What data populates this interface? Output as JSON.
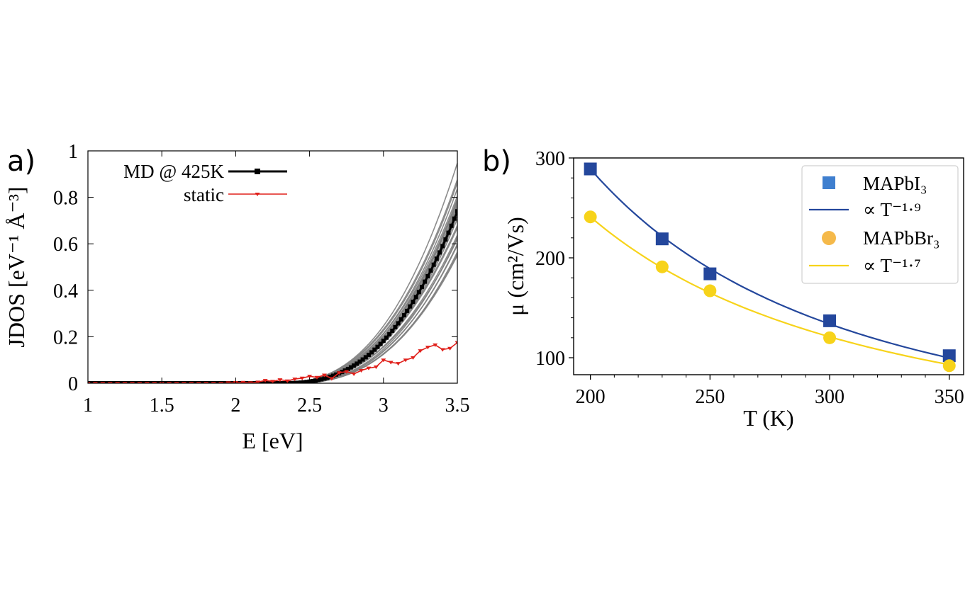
{
  "panels": {
    "a_label": "a)",
    "b_label": "b)"
  },
  "chart_data": [
    {
      "type": "line",
      "panel": "a)",
      "xlabel": "E [eV]",
      "ylabel": "JDOS [eV⁻¹ Å⁻³]",
      "xlim": [
        1,
        3.5
      ],
      "ylim": [
        0,
        1
      ],
      "xticks": [
        "1",
        "1.5",
        "2",
        "2.5",
        "3",
        "3.5"
      ],
      "yticks": [
        "0",
        "0.2",
        "0.4",
        "0.6",
        "0.8",
        "1"
      ],
      "grid": false,
      "legend_position": "top-left",
      "series": [
        {
          "name": "MD @ 425K",
          "color": "#000000",
          "marker": "square",
          "band_color": "#808080",
          "band_samples": 30,
          "model": {
            "onset": 2.3,
            "scale": 0.74,
            "power": 2.6
          },
          "x": [
            1.0,
            1.5,
            2.0,
            2.2,
            2.3,
            2.4,
            2.5,
            2.6,
            2.7,
            2.8,
            2.9,
            3.0,
            3.1,
            3.2,
            3.3,
            3.4,
            3.5
          ],
          "y": [
            0.0,
            0.0,
            0.0,
            0.0,
            0.0,
            0.002,
            0.01,
            0.03,
            0.06,
            0.1,
            0.16,
            0.23,
            0.31,
            0.4,
            0.51,
            0.62,
            0.74
          ]
        },
        {
          "name": "static",
          "color": "#e0201b",
          "marker": "triangle-down",
          "x": [
            1.0,
            1.05,
            1.1,
            1.15,
            1.2,
            1.25,
            1.3,
            1.35,
            1.4,
            1.45,
            1.5,
            1.55,
            1.6,
            1.65,
            1.7,
            1.75,
            1.8,
            1.85,
            1.9,
            1.95,
            2.0,
            2.05,
            2.1,
            2.15,
            2.2,
            2.25,
            2.3,
            2.35,
            2.4,
            2.45,
            2.5,
            2.55,
            2.6,
            2.65,
            2.7,
            2.75,
            2.8,
            2.85,
            2.9,
            2.95,
            3.0,
            3.05,
            3.1,
            3.15,
            3.2,
            3.25,
            3.3,
            3.35,
            3.4,
            3.45,
            3.5
          ],
          "y": [
            0.0,
            0.0,
            0.0,
            0.0,
            0.0,
            0.0,
            0.0,
            0.0,
            0.0,
            0.0,
            0.0,
            0.0,
            0.0,
            0.0,
            0.0,
            0.0,
            0.0,
            0.0,
            0.0,
            0.002,
            0.003,
            0.004,
            0.002,
            0.005,
            0.012,
            0.008,
            0.015,
            0.01,
            0.018,
            0.022,
            0.03,
            0.025,
            0.035,
            0.02,
            0.045,
            0.05,
            0.04,
            0.055,
            0.065,
            0.07,
            0.1,
            0.09,
            0.085,
            0.1,
            0.11,
            0.14,
            0.155,
            0.165,
            0.145,
            0.15,
            0.175
          ]
        }
      ]
    },
    {
      "type": "scatter",
      "panel": "b)",
      "xlabel": "T (K)",
      "ylabel": "μ (cm²/Vs)",
      "xlim": [
        193,
        356
      ],
      "ylim": [
        83,
        300
      ],
      "xticks": [
        "200",
        "250",
        "300",
        "350"
      ],
      "yticks": [
        "100",
        "200",
        "300"
      ],
      "grid": false,
      "legend_position": "top-right",
      "series": [
        {
          "name": "MAPbI₃",
          "color": "#24479c",
          "legend_color": "#3f7fcf",
          "marker": "square",
          "x": [
            200,
            230,
            250,
            300,
            350
          ],
          "y": [
            289,
            219,
            184,
            137,
            102
          ]
        },
        {
          "name": "∝ T⁻¹·⁹",
          "color": "#24479c",
          "fit": {
            "ref_x": 200,
            "ref_y": 289,
            "exponent": -1.9
          }
        },
        {
          "name": "MAPbBr₃",
          "color": "#f7d31a",
          "legend_color": "#f5b94a",
          "marker": "circle",
          "x": [
            200,
            230,
            250,
            300,
            350
          ],
          "y": [
            241,
            191,
            167,
            120,
            92
          ]
        },
        {
          "name": "∝ T⁻¹·⁷",
          "color": "#f7d31a",
          "fit": {
            "ref_x": 200,
            "ref_y": 241,
            "exponent": -1.7
          }
        }
      ]
    }
  ]
}
